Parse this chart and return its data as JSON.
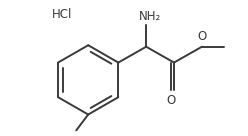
{
  "bg_color": "#ffffff",
  "line_color": "#3a3a3a",
  "text_color": "#3a3a3a",
  "figsize": [
    2.48,
    1.36
  ],
  "dpi": 100,
  "bond_lw": 1.4,
  "HCl_label": "HCl",
  "NH2_label": "NH₂",
  "O_ester_label": "O",
  "O_carbonyl_label": "O",
  "methyl_label": ""
}
